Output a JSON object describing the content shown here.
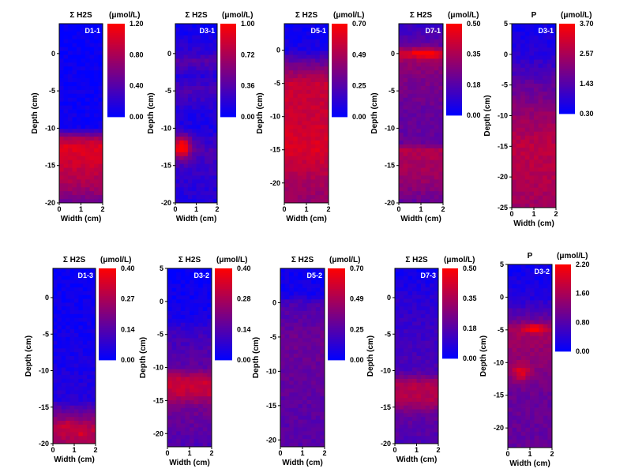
{
  "figure": {
    "colormap": [
      "#0000ff",
      "#ff0000"
    ],
    "panels": [
      {
        "id": "D1-1",
        "species": "H2S",
        "title": "Σ H2S",
        "unit": "(μmol/L)",
        "xlabel": "Width (cm)",
        "ylabel": "Depth (cm)",
        "xticks": [
          "0",
          "1",
          "2"
        ],
        "yticks": [
          "0",
          "-5",
          "-10",
          "-15",
          "-20"
        ],
        "cbar_ticks": [
          "1.20",
          "0.80",
          "0.40",
          "0.00"
        ]
      },
      {
        "id": "D3-1",
        "species": "H2S",
        "title": "Σ H2S",
        "unit": "(μmol/L)",
        "xlabel": "Width (cm)",
        "ylabel": "Depth (cm)",
        "xticks": [
          "0",
          "1",
          "2"
        ],
        "yticks": [
          "0",
          "-5",
          "-10",
          "-15",
          "-20"
        ],
        "cbar_ticks": [
          "1.00",
          "0.72",
          "0.36",
          "0.00"
        ]
      },
      {
        "id": "D5-1",
        "species": "H2S",
        "title": "Σ H2S",
        "unit": "(μmol/L)",
        "xlabel": "Width (cm)",
        "ylabel": "Depth (cm)",
        "xticks": [
          "0",
          "1",
          "2"
        ],
        "yticks": [
          "0",
          "-5",
          "-10",
          "-15",
          "-20"
        ],
        "cbar_ticks": [
          "0.70",
          "0.49",
          "0.25",
          "0.00"
        ]
      },
      {
        "id": "D7-1",
        "species": "H2S",
        "title": "Σ H2S",
        "unit": "(μmol/L)",
        "xlabel": "Width (cm)",
        "ylabel": "Depth (cm)",
        "xticks": [
          "0",
          "1",
          "2"
        ],
        "yticks": [
          "0",
          "-5",
          "-10",
          "-15",
          "-20"
        ],
        "cbar_ticks": [
          "0.50",
          "0.35",
          "0.18",
          "0.00"
        ]
      },
      {
        "id": "D3-1",
        "species": "P",
        "title": "P",
        "unit": "(μmol/L)",
        "xlabel": "Width (cm)",
        "ylabel": "Depth (cm)",
        "xticks": [
          "0",
          "1",
          "2"
        ],
        "yticks": [
          "5",
          "0",
          "-5",
          "-10",
          "-15",
          "-20",
          "-25"
        ],
        "cbar_ticks": [
          "3.70",
          "2.57",
          "1.43",
          "0.30"
        ]
      },
      {
        "id": "D1-3",
        "species": "H2S",
        "title": "Σ H2S",
        "unit": "(μmol/L)",
        "xlabel": "Width (cm)",
        "ylabel": "Depth (cm)",
        "xticks": [
          "0",
          "1",
          "2"
        ],
        "yticks": [
          "0",
          "-5",
          "-10",
          "-15",
          "-20"
        ],
        "cbar_ticks": [
          "0.40",
          "0.27",
          "0.14",
          "0.00"
        ]
      },
      {
        "id": "D3-2",
        "species": "H2S",
        "title": "Σ H2S",
        "unit": "(μmol/L)",
        "xlabel": "Width (cm)",
        "ylabel": "Depth (cm)",
        "xticks": [
          "0",
          "1",
          "2"
        ],
        "yticks": [
          "5",
          "0",
          "-5",
          "-10",
          "-15",
          "-20"
        ],
        "cbar_ticks": [
          "0.40",
          "0.28",
          "0.14",
          "0.00"
        ]
      },
      {
        "id": "D5-2",
        "species": "H2S",
        "title": "Σ H2S",
        "unit": "(μmol/L)",
        "xlabel": "Width (cm)",
        "ylabel": "Depth (cm)",
        "xticks": [
          "0",
          "1",
          "2"
        ],
        "yticks": [
          "0",
          "-5",
          "-10",
          "-15",
          "-20"
        ],
        "cbar_ticks": [
          "0.70",
          "0.49",
          "0.25",
          "0.00"
        ]
      },
      {
        "id": "D7-3",
        "species": "H2S",
        "title": "Σ H2S",
        "unit": "(μmol/L)",
        "xlabel": "Width (cm)",
        "ylabel": "Depth (cm)",
        "xticks": [
          "0",
          "1",
          "2"
        ],
        "yticks": [
          "0",
          "-5",
          "-10",
          "-15",
          "-20"
        ],
        "cbar_ticks": [
          "0.50",
          "0.35",
          "0.18",
          "0.00"
        ]
      },
      {
        "id": "D3-2",
        "species": "P",
        "title": "P",
        "unit": "(μmol/L)",
        "xlabel": "Width (cm)",
        "ylabel": "Depth (cm)",
        "xticks": [
          "0",
          "1",
          "2"
        ],
        "yticks": [
          "5",
          "0",
          "-5",
          "-10",
          "-15",
          "-20"
        ],
        "cbar_ticks": [
          "2.20",
          "1.60",
          "0.80",
          "0.00"
        ]
      }
    ]
  },
  "chart_data": [
    {
      "type": "heatmap",
      "title": "Σ H2S",
      "sample": "D1-1",
      "unit": "μmol/L",
      "xlabel": "Width (cm)",
      "ylabel": "Depth (cm)",
      "xlim": [
        0,
        2
      ],
      "ylim": [
        -20,
        4
      ],
      "clim": [
        0.0,
        1.2
      ],
      "depth_profile": [
        [
          4,
          0.02
        ],
        [
          0,
          0.04
        ],
        [
          -5,
          0.05
        ],
        [
          -10,
          0.08
        ],
        [
          -11.5,
          0.85
        ],
        [
          -12.5,
          1.05
        ],
        [
          -15,
          0.95
        ],
        [
          -18,
          0.75
        ],
        [
          -20,
          0.5
        ]
      ],
      "hotspots": []
    },
    {
      "type": "heatmap",
      "title": "Σ H2S",
      "sample": "D3-1",
      "unit": "μmol/L",
      "xlabel": "Width (cm)",
      "ylabel": "Depth (cm)",
      "xlim": [
        0,
        2
      ],
      "ylim": [
        -20,
        4
      ],
      "clim": [
        0.0,
        1.0
      ],
      "depth_profile": [
        [
          4,
          0.02
        ],
        [
          0,
          0.2
        ],
        [
          -1,
          0.35
        ],
        [
          -3,
          0.15
        ],
        [
          -5,
          0.3
        ],
        [
          -8,
          0.12
        ],
        [
          -10,
          0.1
        ],
        [
          -13,
          0.3
        ],
        [
          -16,
          0.2
        ],
        [
          -20,
          0.12
        ]
      ],
      "hotspots": [
        [
          0.3,
          -12.5,
          0.45,
          1.5,
          0.85
        ]
      ]
    },
    {
      "type": "heatmap",
      "title": "Σ H2S",
      "sample": "D5-1",
      "unit": "μmol/L",
      "xlabel": "Width (cm)",
      "ylabel": "Depth (cm)",
      "xlim": [
        0,
        2
      ],
      "ylim": [
        -23,
        4
      ],
      "clim": [
        0.0,
        0.7
      ],
      "depth_profile": [
        [
          4,
          0.02
        ],
        [
          0,
          0.08
        ],
        [
          -2,
          0.3
        ],
        [
          -5,
          0.55
        ],
        [
          -10,
          0.55
        ],
        [
          -15,
          0.6
        ],
        [
          -20,
          0.45
        ],
        [
          -23,
          0.4
        ]
      ],
      "hotspots": []
    },
    {
      "type": "heatmap",
      "title": "Σ H2S",
      "sample": "D7-1",
      "unit": "μmol/L",
      "xlabel": "Width (cm)",
      "ylabel": "Depth (cm)",
      "xlim": [
        0,
        2
      ],
      "ylim": [
        -20,
        4
      ],
      "clim": [
        0.0,
        0.5
      ],
      "depth_profile": [
        [
          4,
          0.1
        ],
        [
          1,
          0.2
        ],
        [
          0,
          0.45
        ],
        [
          -1,
          0.3
        ],
        [
          -3,
          0.25
        ],
        [
          -8,
          0.2
        ],
        [
          -12,
          0.2
        ],
        [
          -13,
          0.35
        ],
        [
          -17,
          0.3
        ],
        [
          -20,
          0.2
        ]
      ],
      "hotspots": [
        [
          1.2,
          0,
          0.5,
          0.8,
          0.2
        ]
      ]
    },
    {
      "type": "heatmap",
      "title": "P",
      "sample": "D3-1",
      "unit": "μmol/L",
      "xlabel": "Width (cm)",
      "ylabel": "Depth (cm)",
      "xlim": [
        0,
        2
      ],
      "ylim": [
        -25,
        5
      ],
      "clim": [
        0.3,
        3.7
      ],
      "depth_profile": [
        [
          5,
          0.5
        ],
        [
          0,
          0.8
        ],
        [
          -5,
          1.6
        ],
        [
          -10,
          2.3
        ],
        [
          -15,
          2.8
        ],
        [
          -20,
          2.7
        ],
        [
          -25,
          2.4
        ]
      ],
      "hotspots": []
    },
    {
      "type": "heatmap",
      "title": "Σ H2S",
      "sample": "D1-3",
      "unit": "μmol/L",
      "xlabel": "Width (cm)",
      "ylabel": "Depth (cm)",
      "xlim": [
        0,
        2
      ],
      "ylim": [
        -20,
        4
      ],
      "clim": [
        0.0,
        0.4
      ],
      "depth_profile": [
        [
          4,
          0.01
        ],
        [
          0,
          0.02
        ],
        [
          -10,
          0.04
        ],
        [
          -14,
          0.06
        ],
        [
          -16,
          0.18
        ],
        [
          -18,
          0.3
        ],
        [
          -20,
          0.25
        ]
      ],
      "hotspots": [
        [
          0.7,
          -17.5,
          0.3,
          0.6,
          0.15
        ],
        [
          1.4,
          -18.7,
          0.25,
          0.5,
          0.15
        ]
      ]
    },
    {
      "type": "heatmap",
      "title": "Σ H2S",
      "sample": "D3-2",
      "unit": "μmol/L",
      "xlabel": "Width (cm)",
      "ylabel": "Depth (cm)",
      "xlim": [
        0,
        2
      ],
      "ylim": [
        -22,
        5
      ],
      "clim": [
        0.0,
        0.4
      ],
      "depth_profile": [
        [
          5,
          0.01
        ],
        [
          -2,
          0.03
        ],
        [
          -5,
          0.1
        ],
        [
          -10,
          0.15
        ],
        [
          -12,
          0.32
        ],
        [
          -14,
          0.3
        ],
        [
          -16,
          0.18
        ],
        [
          -22,
          0.12
        ]
      ],
      "hotspots": []
    },
    {
      "type": "heatmap",
      "title": "Σ H2S",
      "sample": "D5-2",
      "unit": "μmol/L",
      "xlabel": "Width (cm)",
      "ylabel": "Depth (cm)",
      "xlim": [
        0,
        2
      ],
      "ylim": [
        -21,
        5
      ],
      "clim": [
        0.0,
        0.7
      ],
      "depth_profile": [
        [
          5,
          0.03
        ],
        [
          1,
          0.06
        ],
        [
          0,
          0.2
        ],
        [
          -5,
          0.3
        ],
        [
          -10,
          0.28
        ],
        [
          -15,
          0.25
        ],
        [
          -21,
          0.24
        ]
      ],
      "hotspots": []
    },
    {
      "type": "heatmap",
      "title": "Σ H2S",
      "sample": "D7-3",
      "unit": "μmol/L",
      "xlabel": "Width (cm)",
      "ylabel": "Depth (cm)",
      "xlim": [
        0,
        2
      ],
      "ylim": [
        -20,
        4
      ],
      "clim": [
        0.0,
        0.5
      ],
      "depth_profile": [
        [
          4,
          0.02
        ],
        [
          0,
          0.08
        ],
        [
          -5,
          0.12
        ],
        [
          -10,
          0.15
        ],
        [
          -12,
          0.35
        ],
        [
          -14,
          0.35
        ],
        [
          -16,
          0.2
        ],
        [
          -20,
          0.15
        ]
      ],
      "hotspots": []
    },
    {
      "type": "heatmap",
      "title": "P",
      "sample": "D3-2",
      "unit": "μmol/L",
      "xlabel": "Width (cm)",
      "ylabel": "Depth (cm)",
      "xlim": [
        0,
        2
      ],
      "ylim": [
        -23,
        5
      ],
      "clim": [
        0.0,
        2.2
      ],
      "depth_profile": [
        [
          5,
          0.1
        ],
        [
          0,
          0.3
        ],
        [
          -3,
          0.8
        ],
        [
          -5,
          1.4
        ],
        [
          -10,
          1.2
        ],
        [
          -15,
          0.9
        ],
        [
          -23,
          0.85
        ]
      ],
      "hotspots": [
        [
          1.2,
          -4.8,
          0.5,
          0.6,
          0.5
        ],
        [
          0.6,
          -11.5,
          0.4,
          1.2,
          0.4
        ]
      ]
    }
  ]
}
